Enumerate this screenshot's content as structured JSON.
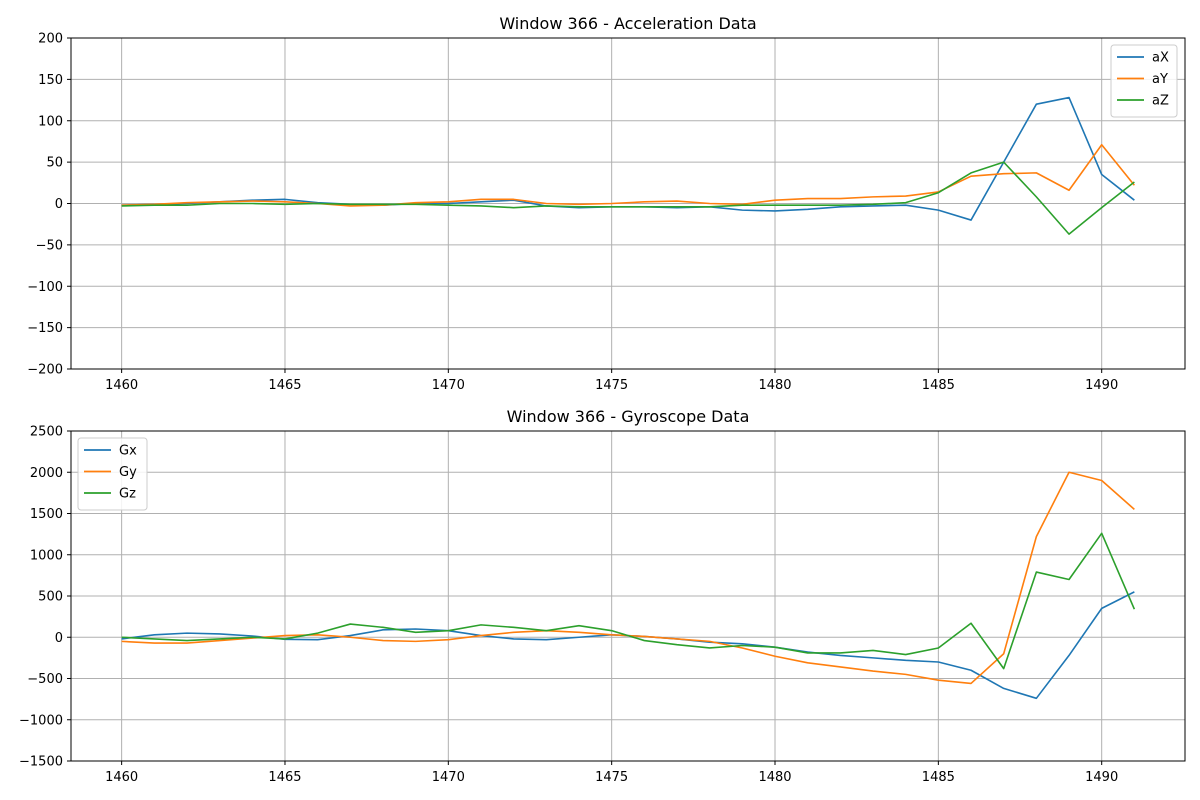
{
  "chart_data": [
    {
      "type": "line",
      "title": "Window 366 - Acceleration Data",
      "xlabel": "",
      "ylabel": "",
      "xlim": [
        1458.45,
        1492.55
      ],
      "ylim": [
        -200,
        200
      ],
      "xticks": [
        1460,
        1465,
        1470,
        1475,
        1480,
        1485,
        1490
      ],
      "yticks": [
        -200,
        -150,
        -100,
        -50,
        0,
        50,
        100,
        150,
        200
      ],
      "grid": true,
      "legend": "top-right",
      "x": [
        1460,
        1461,
        1462,
        1463,
        1464,
        1465,
        1466,
        1467,
        1468,
        1469,
        1470,
        1471,
        1472,
        1473,
        1474,
        1475,
        1476,
        1477,
        1478,
        1479,
        1480,
        1481,
        1482,
        1483,
        1484,
        1485,
        1486,
        1487,
        1488,
        1489,
        1490,
        1491
      ],
      "series": [
        {
          "name": "aX",
          "color": "#1f77b4",
          "values": [
            -2,
            -1,
            0,
            2,
            4,
            5,
            1,
            -1,
            -2,
            0,
            0,
            2,
            4,
            -3,
            -5,
            -4,
            -4,
            -5,
            -4,
            -8,
            -9,
            -7,
            -4,
            -3,
            -2,
            -8,
            -20,
            50,
            120,
            128,
            35,
            4
          ]
        },
        {
          "name": "aY",
          "color": "#ff7f0e",
          "values": [
            -2,
            -1,
            1,
            2,
            3,
            2,
            0,
            -3,
            -2,
            1,
            2,
            5,
            5,
            0,
            -1,
            0,
            2,
            3,
            0,
            -1,
            4,
            6,
            6,
            8,
            9,
            14,
            33,
            36,
            37,
            16,
            71,
            22
          ]
        },
        {
          "name": "aZ",
          "color": "#2ca02c",
          "values": [
            -3,
            -2,
            -2,
            0,
            0,
            -1,
            0,
            -1,
            -1,
            -1,
            -2,
            -3,
            -5,
            -3,
            -4,
            -4,
            -4,
            -4,
            -4,
            -2,
            -2,
            -2,
            -2,
            -1,
            1,
            13,
            37,
            50,
            8,
            -37,
            -5,
            26
          ]
        }
      ]
    },
    {
      "type": "line",
      "title": "Window 366 - Gyroscope Data",
      "xlabel": "",
      "ylabel": "",
      "xlim": [
        1458.45,
        1492.55
      ],
      "ylim": [
        -1500,
        2500
      ],
      "xticks": [
        1460,
        1465,
        1470,
        1475,
        1480,
        1485,
        1490
      ],
      "yticks": [
        -1500,
        -1000,
        -500,
        0,
        500,
        1000,
        1500,
        2000,
        2500
      ],
      "grid": true,
      "legend": "top-left",
      "x": [
        1460,
        1461,
        1462,
        1463,
        1464,
        1465,
        1466,
        1467,
        1468,
        1469,
        1470,
        1471,
        1472,
        1473,
        1474,
        1475,
        1476,
        1477,
        1478,
        1479,
        1480,
        1481,
        1482,
        1483,
        1484,
        1485,
        1486,
        1487,
        1488,
        1489,
        1490,
        1491
      ],
      "series": [
        {
          "name": "Gx",
          "color": "#1f77b4",
          "values": [
            -20,
            30,
            50,
            40,
            15,
            -25,
            -30,
            20,
            90,
            100,
            80,
            20,
            -20,
            -30,
            0,
            30,
            10,
            -20,
            -60,
            -80,
            -120,
            -180,
            -220,
            -250,
            -280,
            -300,
            -400,
            -620,
            -740,
            -220,
            350,
            550
          ]
        },
        {
          "name": "Gy",
          "color": "#ff7f0e",
          "values": [
            -50,
            -70,
            -70,
            -40,
            -10,
            20,
            30,
            0,
            -40,
            -50,
            -30,
            20,
            60,
            80,
            60,
            30,
            10,
            -20,
            -50,
            -130,
            -230,
            -310,
            -360,
            -410,
            -450,
            -520,
            -560,
            -200,
            1220,
            2000,
            1900,
            1550
          ]
        },
        {
          "name": "Gz",
          "color": "#2ca02c",
          "values": [
            0,
            -20,
            -40,
            -20,
            0,
            -20,
            50,
            160,
            120,
            60,
            80,
            150,
            120,
            80,
            140,
            80,
            -40,
            -90,
            -130,
            -100,
            -120,
            -190,
            -190,
            -160,
            -210,
            -130,
            170,
            -380,
            790,
            700,
            1260,
            340
          ]
        }
      ]
    }
  ]
}
